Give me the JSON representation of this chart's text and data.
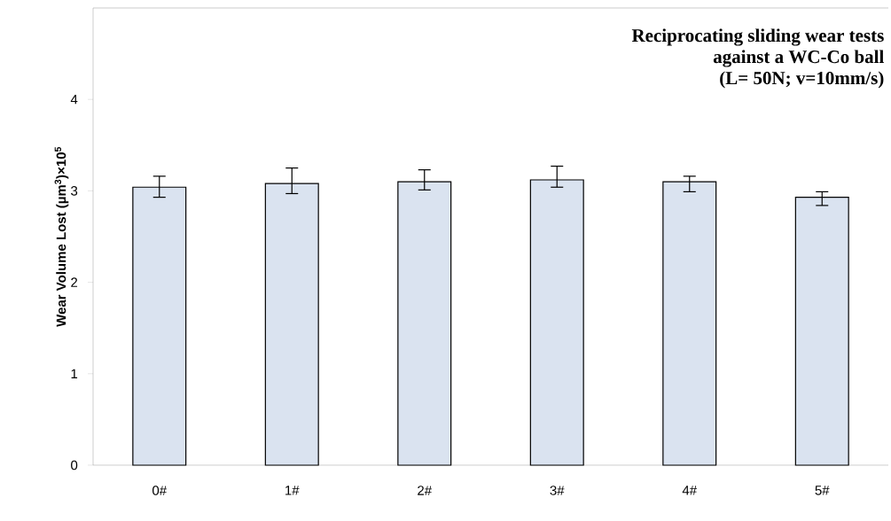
{
  "chart_data": {
    "type": "bar",
    "ylabel": "Wear Volume Lost (µm$^{3}$)×10$^{5}$",
    "annotations": [
      "Reciprocating sliding wear tests",
      "against a WC-Co ball",
      "(L= 50N; v=10mm/s)"
    ],
    "categories": [
      "0#",
      "1#",
      "2#",
      "3#",
      "4#",
      "5#"
    ],
    "values": [
      3.04,
      3.08,
      3.1,
      3.12,
      3.1,
      2.93
    ],
    "errors": [
      [
        2.93,
        3.16
      ],
      [
        2.97,
        3.25
      ],
      [
        3.01,
        3.23
      ],
      [
        3.04,
        3.27
      ],
      [
        2.99,
        3.16
      ],
      [
        2.84,
        2.99
      ]
    ],
    "color": "#dae3f0",
    "ylim": [
      0,
      5
    ],
    "yticks": [
      0,
      1,
      2,
      3,
      4
    ],
    "grid": false
  }
}
